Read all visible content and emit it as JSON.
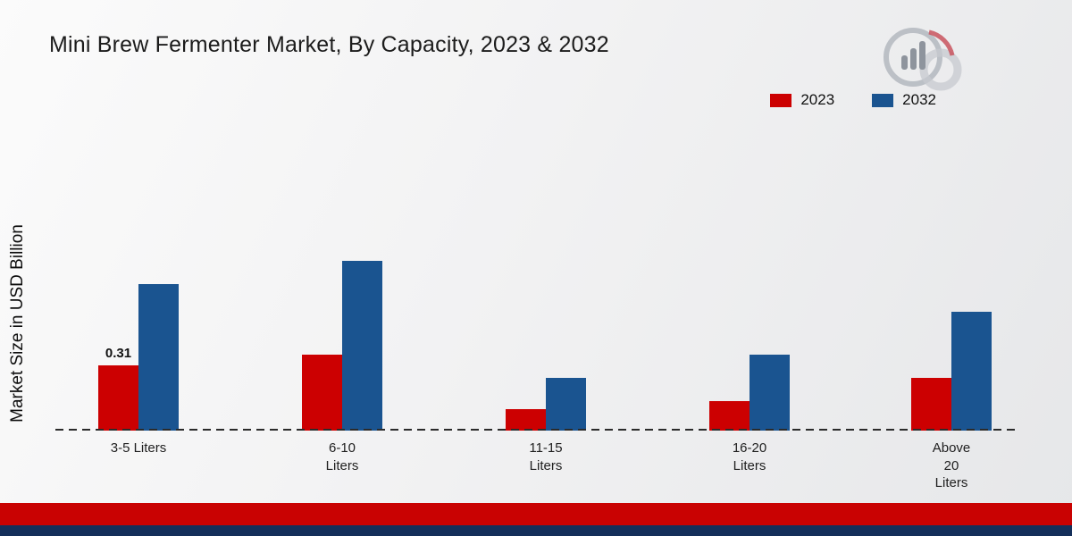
{
  "header": {
    "title": "Mini Brew Fermenter Market, By Capacity, 2023 & 2032"
  },
  "chart_data": {
    "type": "bar",
    "title": "Mini Brew Fermenter Market, By Capacity, 2023 & 2032",
    "xlabel": "",
    "ylabel": "Market Size in USD Billion",
    "categories": [
      "3-5 Liters",
      "6-10\nLiters",
      "11-15\nLiters",
      "16-20\nLiters",
      "Above\n20\nLiters"
    ],
    "series": [
      {
        "name": "2023",
        "color": "#cc0001",
        "values": [
          0.31,
          0.36,
          0.1,
          0.14,
          0.25
        ]
      },
      {
        "name": "2032",
        "color": "#1a5490",
        "values": [
          0.69,
          0.8,
          0.25,
          0.36,
          0.56
        ]
      }
    ],
    "annotations": [
      {
        "series": 0,
        "index": 0,
        "text": "0.31"
      }
    ],
    "ylim": [
      0,
      0.9
    ],
    "grid": false,
    "legend_position": "top-right",
    "baseline_style": "dashed"
  },
  "footer": {
    "red_strip_color": "#c90202",
    "navy_strip_color": "#142f5a"
  }
}
